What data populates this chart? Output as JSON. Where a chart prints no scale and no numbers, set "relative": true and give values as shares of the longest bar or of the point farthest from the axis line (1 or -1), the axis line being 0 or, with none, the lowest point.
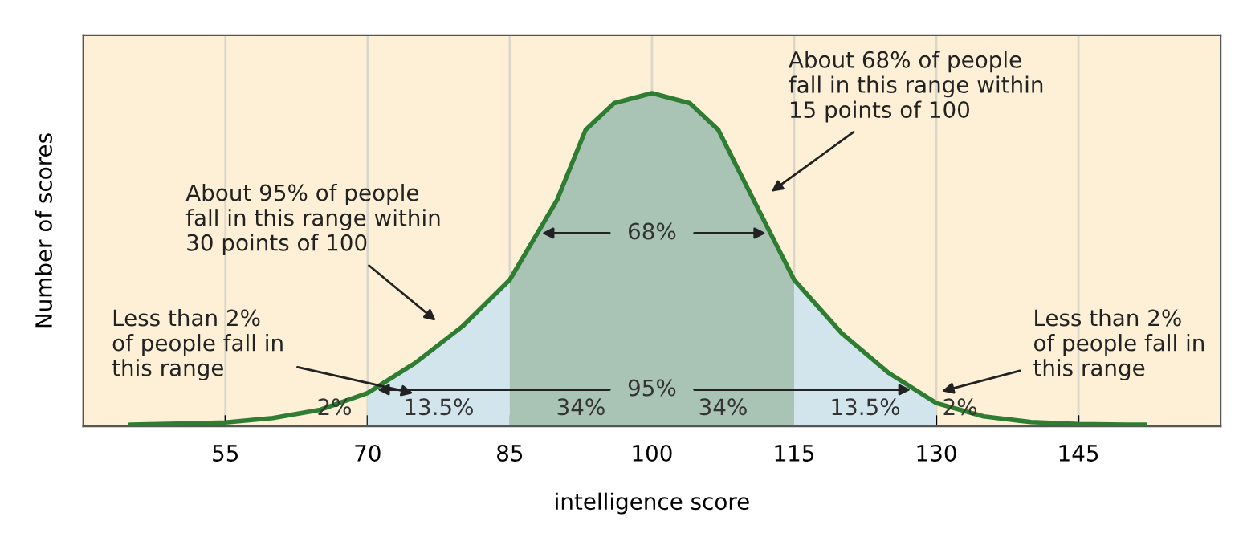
{
  "chart_data": {
    "type": "line",
    "relative": true,
    "xlabel": "intelligence score",
    "ylabel": "Number of scores",
    "x": [
      45,
      50,
      55,
      60,
      65,
      70,
      75,
      80,
      85,
      90,
      93,
      96,
      100,
      104,
      107,
      110,
      115,
      120,
      125,
      130,
      135,
      140,
      145,
      150,
      152
    ],
    "series": [
      {
        "color": "#2e7d32",
        "values": [
          0.005,
          0.008,
          0.012,
          0.025,
          0.05,
          0.1,
          0.19,
          0.3,
          0.44,
          0.68,
          0.89,
          0.97,
          1.0,
          0.97,
          0.89,
          0.72,
          0.44,
          0.28,
          0.16,
          0.07,
          0.03,
          0.013,
          0.007,
          0.005,
          0.005
        ]
      },
      {
        "type": "area",
        "color": "#d3e5ec",
        "x": [
          70,
          75,
          80,
          85
        ],
        "values": [
          0.1,
          0.19,
          0.3,
          0.44
        ]
      },
      {
        "type": "area",
        "color": "#a9c4b5",
        "x": [
          85,
          90,
          93,
          96,
          100,
          104,
          107,
          110,
          115
        ],
        "values": [
          0.44,
          0.68,
          0.89,
          0.97,
          1.0,
          0.97,
          0.89,
          0.72,
          0.44
        ]
      },
      {
        "type": "area",
        "color": "#d3e5ec",
        "x": [
          115,
          120,
          125,
          130
        ],
        "values": [
          0.44,
          0.28,
          0.16,
          0.07
        ]
      }
    ],
    "xlim": [
      40,
      160
    ],
    "xticks": [
      55,
      70,
      85,
      100,
      115,
      130,
      145
    ],
    "grid": "x",
    "marker": "none",
    "line_style": "solid",
    "annotations": [
      "2%",
      "13.5%",
      "34%",
      "34%",
      "13.5%",
      "2%",
      "68%",
      "95%",
      "Less than 2%\nof people fall in\nthis range",
      "About 95% of people\nfall in this range within\n30 points of 100",
      "About 68% of people\nfall in this range within\n15 points of 100",
      "Less than 2%\nof people fall in\nthis range"
    ]
  }
}
